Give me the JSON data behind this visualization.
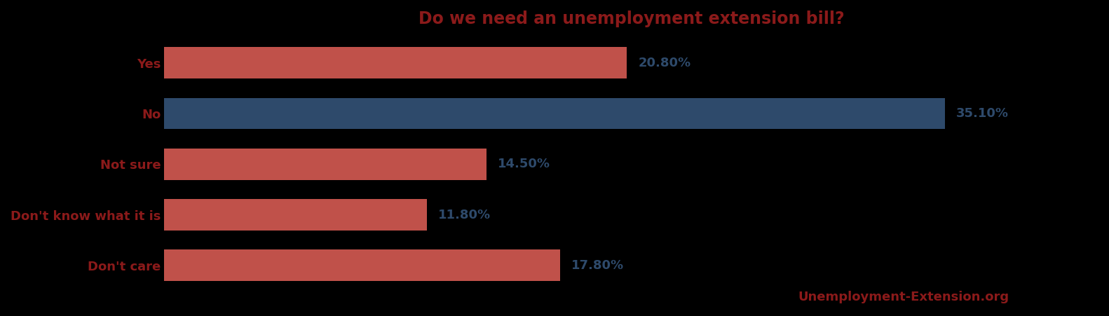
{
  "title": "Do we need an unemployment extension bill?",
  "title_color": "#8B1A1A",
  "title_fontsize": 17,
  "categories": [
    "Yes",
    "No",
    "Not sure",
    "Don't know what it is",
    "Don't care"
  ],
  "values": [
    20.8,
    35.1,
    14.5,
    11.8,
    17.8
  ],
  "bar_colors": [
    "#C0514A",
    "#2E4A6B",
    "#C0514A",
    "#C0514A",
    "#C0514A"
  ],
  "label_color": "#2E4A6B",
  "label_fontsize": 13,
  "ylabel_color": "#8B1A1A",
  "ylabel_fontsize": 13,
  "watermark": "Unemployment-Extension.org",
  "watermark_color": "#8B1A1A",
  "watermark_fontsize": 13,
  "xlim": [
    0,
    42
  ],
  "bar_height": 0.62,
  "background_color": "#000000",
  "figsize": [
    15.82,
    4.51
  ],
  "dpi": 100
}
